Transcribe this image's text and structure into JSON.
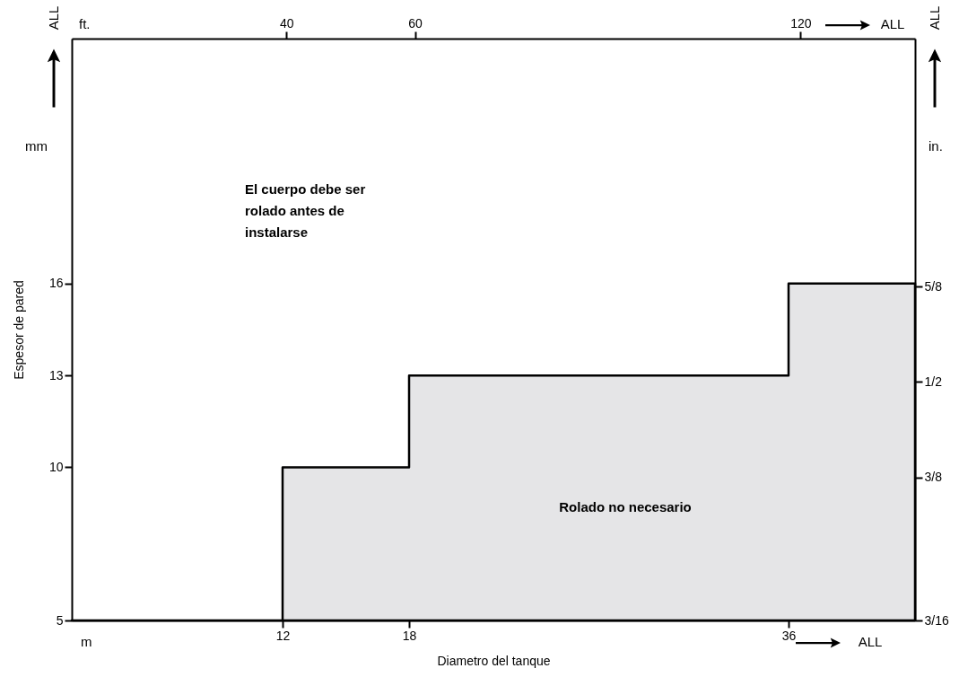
{
  "chart_data": {
    "type": "area",
    "xlabel": "Diametro del tanque",
    "ylabel": "Espesor de pared",
    "xlim": [
      2,
      42
    ],
    "xticks": [
      12,
      18,
      36
    ],
    "x2lim": [
      6.6,
      137.8
    ],
    "x2ticks": [
      40,
      60,
      120
    ],
    "ylim": [
      5,
      24
    ],
    "yticks": [
      5,
      10,
      13,
      16
    ],
    "y2lim": [
      0.1875,
      0.95
    ],
    "y2ticks": [
      {
        "value": 0.1875,
        "label": "3/16"
      },
      {
        "value": 0.375,
        "label": "3/8"
      },
      {
        "value": 0.5,
        "label": "1/2"
      },
      {
        "value": 0.625,
        "label": "5/8"
      }
    ],
    "series": [
      {
        "type": "area",
        "color": "#e5e5e7",
        "x": [
          2,
          12,
          12,
          18,
          18,
          36,
          36,
          42
        ],
        "values": [
          5,
          5,
          10,
          10,
          13,
          13,
          16,
          16
        ]
      }
    ],
    "annotations": [
      "ft.",
      "ALL",
      "ALL",
      "ALL",
      "mm",
      "in.",
      "m",
      "ALL",
      "El cuerpo debe ser rolado antes de instalarse",
      "Rolado no necesario"
    ],
    "grid": false
  }
}
